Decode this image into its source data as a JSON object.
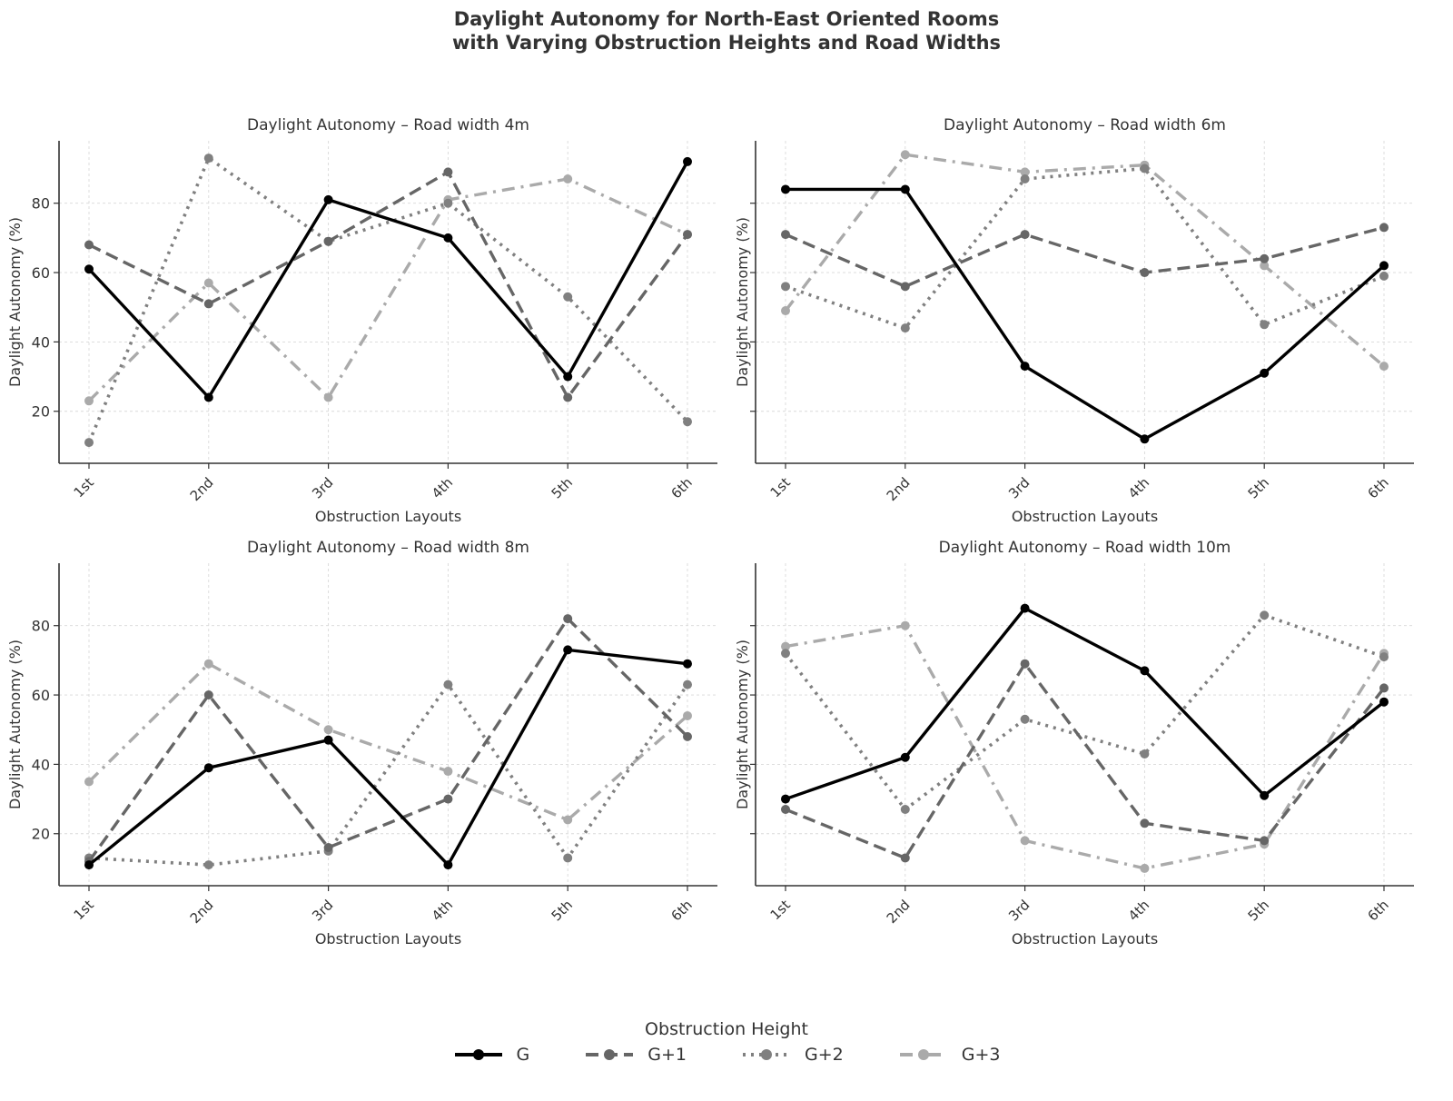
{
  "chart_data": {
    "type": "line",
    "title": "Daylight Autonomy for North-East Oriented Rooms\nwith Varying Obstruction Heights and Road Widths",
    "title_lines": [
      "Daylight Autonomy for North-East Oriented Rooms",
      "with Varying Obstruction Heights and Road Widths"
    ],
    "legend": {
      "title": "Obstruction Height",
      "placement": "bottom-center",
      "entries": [
        "G",
        "G+1",
        "G+2",
        "G+3"
      ]
    },
    "series_styles": {
      "G": {
        "color": "#000000",
        "dash": "solid"
      },
      "G+1": {
        "color": "#666666",
        "dash": "dashed"
      },
      "G+2": {
        "color": "#808080",
        "dash": "dotted"
      },
      "G+3": {
        "color": "#aaaaaa",
        "dash": "dashdot"
      }
    },
    "panels": [
      {
        "title": "Daylight Autonomy – Road width 4m",
        "xlabel": "Obstruction Layouts",
        "ylabel": "Daylight Autonomy (%)",
        "categories": [
          "1st",
          "2nd",
          "3rd",
          "4th",
          "5th",
          "6th"
        ],
        "yticks": [
          20,
          40,
          60,
          80
        ],
        "ylim": [
          5,
          98
        ],
        "grid": true,
        "show_ytick_labels": true,
        "series": [
          {
            "name": "G",
            "values": [
              61,
              24,
              81,
              70,
              30,
              92
            ]
          },
          {
            "name": "G+1",
            "values": [
              68,
              51,
              69,
              89,
              24,
              71
            ]
          },
          {
            "name": "G+2",
            "values": [
              11,
              93,
              69,
              80,
              53,
              17
            ]
          },
          {
            "name": "G+3",
            "values": [
              23,
              57,
              24,
              81,
              87,
              71
            ]
          }
        ]
      },
      {
        "title": "Daylight Autonomy – Road width 6m",
        "xlabel": "Obstruction Layouts",
        "ylabel": "Daylight Autonomy (%)",
        "categories": [
          "1st",
          "2nd",
          "3rd",
          "4th",
          "5th",
          "6th"
        ],
        "yticks": [
          20,
          40,
          60,
          80
        ],
        "ylim": [
          5,
          98
        ],
        "grid": true,
        "show_ytick_labels": false,
        "series": [
          {
            "name": "G",
            "values": [
              84,
              84,
              33,
              12,
              31,
              62
            ]
          },
          {
            "name": "G+1",
            "values": [
              71,
              56,
              71,
              60,
              64,
              73
            ]
          },
          {
            "name": "G+2",
            "values": [
              56,
              44,
              87,
              90,
              45,
              59
            ]
          },
          {
            "name": "G+3",
            "values": [
              49,
              94,
              89,
              91,
              62,
              33
            ]
          }
        ]
      },
      {
        "title": "Daylight Autonomy – Road width 8m",
        "xlabel": "Obstruction Layouts",
        "ylabel": "Daylight Autonomy (%)",
        "categories": [
          "1st",
          "2nd",
          "3rd",
          "4th",
          "5th",
          "6th"
        ],
        "yticks": [
          20,
          40,
          60,
          80
        ],
        "ylim": [
          5,
          98
        ],
        "grid": true,
        "show_ytick_labels": true,
        "series": [
          {
            "name": "G",
            "values": [
              11,
              39,
              47,
              11,
              73,
              69
            ]
          },
          {
            "name": "G+1",
            "values": [
              12,
              60,
              16,
              30,
              82,
              48
            ]
          },
          {
            "name": "G+2",
            "values": [
              13,
              11,
              15,
              63,
              13,
              63
            ]
          },
          {
            "name": "G+3",
            "values": [
              35,
              69,
              50,
              38,
              24,
              54
            ]
          }
        ]
      },
      {
        "title": "Daylight Autonomy – Road width 10m",
        "xlabel": "Obstruction Layouts",
        "ylabel": "Daylight Autonomy (%)",
        "categories": [
          "1st",
          "2nd",
          "3rd",
          "4th",
          "5th",
          "6th"
        ],
        "yticks": [
          20,
          40,
          60,
          80
        ],
        "ylim": [
          5,
          98
        ],
        "grid": true,
        "show_ytick_labels": false,
        "series": [
          {
            "name": "G",
            "values": [
              30,
              42,
              85,
              67,
              31,
              58
            ]
          },
          {
            "name": "G+1",
            "values": [
              27,
              13,
              69,
              23,
              18,
              62
            ]
          },
          {
            "name": "G+2",
            "values": [
              72,
              27,
              53,
              43,
              83,
              71
            ]
          },
          {
            "name": "G+3",
            "values": [
              74,
              80,
              18,
              10,
              17,
              72
            ]
          }
        ]
      }
    ]
  }
}
